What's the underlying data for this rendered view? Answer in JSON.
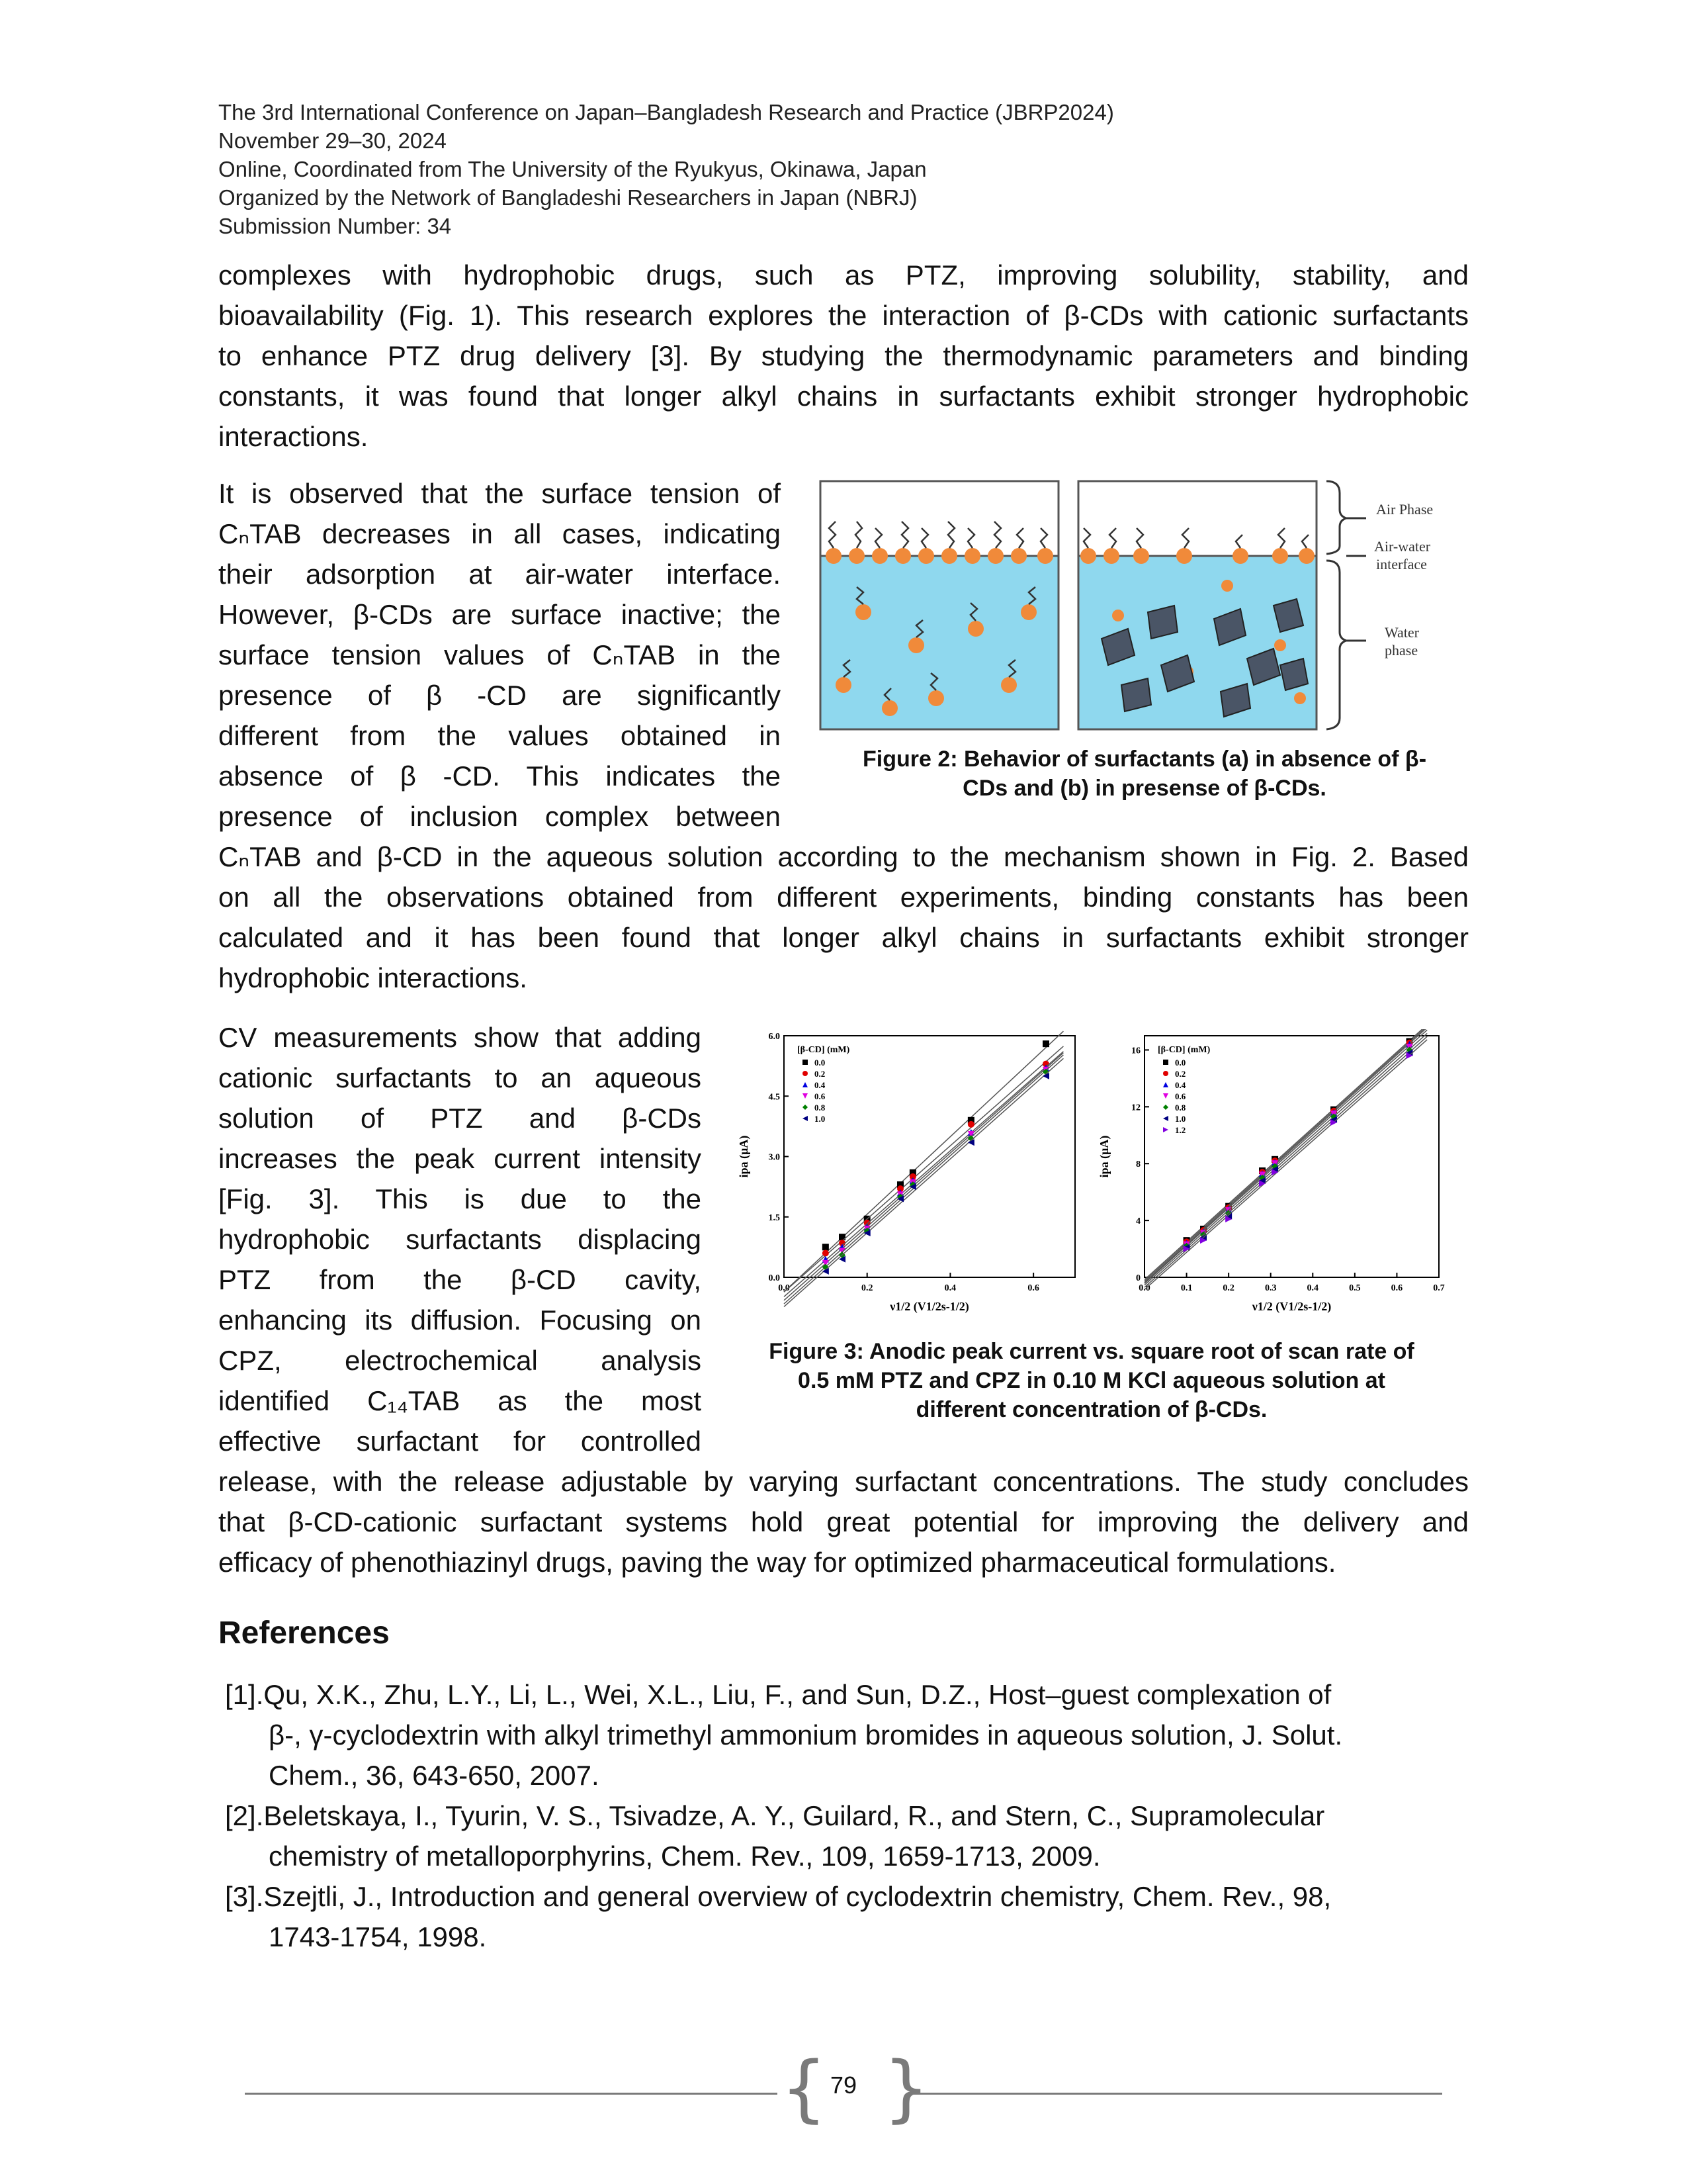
{
  "header": {
    "line1": "The 3rd International Conference on Japan–Bangladesh Research and Practice (JBRP2024)",
    "line2": "November 29–30, 2024",
    "line3": "Online, Coordinated from The University of the Ryukyus, Okinawa, Japan",
    "line4": "Organized by the Network of Bangladeshi Researchers in Japan (NBRJ)",
    "line5": "Submission Number: 34"
  },
  "para1": [
    "complexes with hydrophobic drugs, such as PTZ, improving solubility, stability, and",
    "bioavailability (Fig. 1). This research explores the interaction of β-CDs with cationic surfactants",
    "to enhance PTZ drug delivery [3]. By studying the thermodynamic parameters and binding",
    "constants, it was found that longer alkyl chains in surfactants exhibit stronger hydrophobic",
    "interactions."
  ],
  "para2_left": [
    "It is observed that the surface tension of",
    "CₙTAB decreases in all cases, indicating",
    "their adsorption at air-water interface.",
    "However, β-CDs are surface inactive; the",
    "surface tension values of CₙTAB in the",
    "presence of β -CD are significantly",
    "different from the values obtained in",
    "absence of β -CD. This indicates the",
    "presence of inclusion complex between"
  ],
  "para2_full": [
    "CₙTAB and β-CD in the aqueous solution according to the mechanism shown in Fig. 2. Based",
    "on all the observations obtained from different experiments, binding constants has been",
    "calculated and it has been found that longer alkyl chains in surfactants exhibit stronger",
    "hydrophobic interactions."
  ],
  "figure2": {
    "label_air_phase": "Air Phase",
    "label_interface_1": "Air-water",
    "label_interface_2": "interface",
    "label_water_1": "Water",
    "label_water_2": "phase",
    "caption_line1": "Figure 2: Behavior of surfactants (a) in absence of β-",
    "caption_line2": "CDs and (b) in presense of β-CDs.",
    "colors": {
      "water": "#8fd8ee",
      "droplet": "#f08a3a",
      "cd": "#4a5566"
    }
  },
  "para3_left": [
    "CV measurements show that adding",
    "cationic surfactants to an aqueous",
    "solution of PTZ and β-CDs",
    "increases the peak current intensity",
    "[Fig. 3]. This is due to the",
    "hydrophobic surfactants displacing",
    "PTZ from the β-CD cavity,",
    "enhancing its diffusion. Focusing on",
    "CPZ, electrochemical analysis",
    "identified C₁₄TAB as the most",
    "effective surfactant for controlled"
  ],
  "para3_full": [
    "release, with the release adjustable by varying surfactant concentrations. The study concludes",
    "that β-CD-cationic surfactant systems hold great potential for improving the delivery and",
    "efficacy of phenothiazinyl drugs, paving the way for optimized pharmaceutical formulations."
  ],
  "figure3": {
    "caption_line1": "Figure 3: Anodic peak current vs. square root of scan rate of",
    "caption_line2": "0.5 mM PTZ and CPZ in 0.10 M KCl aqueous solution at",
    "caption_line3": "different concentration of β-CDs."
  },
  "chart_data": [
    {
      "type": "scatter",
      "title": "",
      "xlabel": "ν1/2 (V1/2s-1/2)",
      "ylabel": "ipa (μA)",
      "legend_title": "[β-CD] (mM)",
      "legend_placement": "top-left",
      "xlim": [
        0.0,
        0.7
      ],
      "ylim": [
        0.0,
        6.0
      ],
      "xticks": [
        "0.0",
        "0.2",
        "0.4",
        "0.6"
      ],
      "yticks": [
        "0.0",
        "1.5",
        "3.0",
        "4.5",
        "6.0"
      ],
      "x": [
        0.1,
        0.14,
        0.2,
        0.28,
        0.31,
        0.45,
        0.63
      ],
      "series": [
        {
          "name": "0.0",
          "color": "#000000",
          "marker": "square",
          "values": [
            0.75,
            1.0,
            1.45,
            2.3,
            2.6,
            3.9,
            5.8
          ]
        },
        {
          "name": "0.2",
          "color": "#e00000",
          "marker": "circle",
          "values": [
            0.6,
            0.85,
            1.35,
            2.2,
            2.5,
            3.8,
            5.3
          ]
        },
        {
          "name": "0.4",
          "color": "#0000e0",
          "marker": "triangle-up",
          "values": [
            0.45,
            0.75,
            1.25,
            2.1,
            2.4,
            3.6,
            5.2
          ]
        },
        {
          "name": "0.6",
          "color": "#e000e0",
          "marker": "triangle-down",
          "values": [
            0.35,
            0.65,
            1.2,
            2.05,
            2.35,
            3.55,
            5.15
          ]
        },
        {
          "name": "0.8",
          "color": "#008000",
          "marker": "diamond",
          "values": [
            0.25,
            0.55,
            1.15,
            2.0,
            2.3,
            3.45,
            5.1
          ]
        },
        {
          "name": "1.0",
          "color": "#000080",
          "marker": "triangle-left",
          "values": [
            0.15,
            0.45,
            1.1,
            1.95,
            2.25,
            3.35,
            5.0
          ]
        }
      ]
    },
    {
      "type": "scatter",
      "title": "",
      "xlabel": "ν1/2 (V1/2s-1/2)",
      "ylabel": "ipa (μA)",
      "legend_title": "[β-CD] (mM)",
      "legend_placement": "top-left",
      "xlim": [
        0.0,
        0.7
      ],
      "ylim": [
        0,
        17
      ],
      "xticks": [
        "0.0",
        "0.1",
        "0.2",
        "0.3",
        "0.4",
        "0.5",
        "0.6",
        "0.7"
      ],
      "yticks": [
        "0",
        "4",
        "8",
        "12",
        "16"
      ],
      "x": [
        0.1,
        0.14,
        0.2,
        0.28,
        0.31,
        0.45,
        0.63
      ],
      "series": [
        {
          "name": "0.0",
          "color": "#000000",
          "marker": "square",
          "values": [
            2.6,
            3.4,
            5.0,
            7.5,
            8.3,
            11.8,
            16.6
          ]
        },
        {
          "name": "0.2",
          "color": "#e00000",
          "marker": "circle",
          "values": [
            2.5,
            3.3,
            4.9,
            7.4,
            8.2,
            11.7,
            16.5
          ]
        },
        {
          "name": "0.4",
          "color": "#0000e0",
          "marker": "triangle-up",
          "values": [
            2.4,
            3.2,
            4.8,
            7.3,
            8.1,
            11.6,
            16.4
          ]
        },
        {
          "name": "0.6",
          "color": "#e000e0",
          "marker": "triangle-down",
          "values": [
            2.3,
            3.1,
            4.7,
            7.2,
            8.0,
            11.5,
            16.2
          ]
        },
        {
          "name": "0.8",
          "color": "#008000",
          "marker": "diamond",
          "values": [
            2.2,
            3.0,
            4.5,
            7.0,
            7.8,
            11.3,
            16.0
          ]
        },
        {
          "name": "1.0",
          "color": "#000080",
          "marker": "triangle-left",
          "values": [
            2.1,
            2.8,
            4.3,
            6.8,
            7.6,
            11.1,
            15.8
          ]
        },
        {
          "name": "1.2",
          "color": "#8000e0",
          "marker": "triangle-right",
          "values": [
            2.0,
            2.6,
            4.1,
            6.6,
            7.4,
            10.9,
            15.6
          ]
        }
      ]
    }
  ],
  "references": {
    "title": "References",
    "items": [
      {
        "num": "[1].",
        "lines": [
          "Qu, X.K., Zhu, L.Y., Li, L., Wei, X.L., Liu, F., and Sun, D.Z., Host–guest complexation of",
          "β-, γ-cyclodextrin with alkyl trimethyl ammonium bromides in aqueous solution, J. Solut.",
          "Chem., 36, 643-650, 2007."
        ]
      },
      {
        "num": "[2].",
        "lines": [
          "Beletskaya, I., Tyurin, V. S., Tsivadze, A. Y., Guilard, R., and Stern, C., Supramolecular",
          "chemistry of metalloporphyrins, Chem. Rev., 109, 1659-1713, 2009."
        ]
      },
      {
        "num": "[3].",
        "lines": [
          "Szejtli, J., Introduction and general overview of cyclodextrin chemistry, Chem. Rev., 98,",
          "1743-1754, 1998."
        ]
      }
    ]
  },
  "footer": {
    "page_number": "79"
  }
}
